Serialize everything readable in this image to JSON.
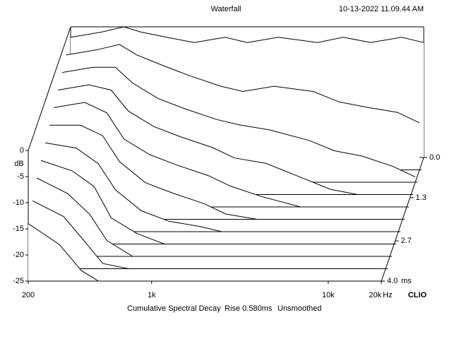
{
  "chart_data": {
    "type": "waterfall",
    "title": "Waterfall",
    "timestamp": "10-13-2022 11.09.44 AM",
    "caption": [
      "Cumulative Spectral Decay",
      "Rise 0.580ms",
      "Unsmoothed"
    ],
    "brand": "CLIO",
    "y_unit": "dB",
    "x_unit": "Hz",
    "z_unit": "ms",
    "log_x": true,
    "color": "#000000",
    "x": [
      200,
      300,
      400,
      500,
      700,
      1000,
      1500,
      2000,
      3000,
      5000,
      7000,
      10000,
      15000,
      20000
    ],
    "xlim": [
      200,
      20000
    ],
    "xticks": [
      200,
      {
        "value": 1000,
        "label": "1k"
      },
      {
        "value": 10000,
        "label": "10k"
      },
      {
        "value": 20000,
        "label": "20k"
      }
    ],
    "ylim": [
      -25,
      0
    ],
    "yticks": [
      0,
      -5,
      -10,
      -15,
      -20,
      -25
    ],
    "zlim": [
      0,
      4
    ],
    "zticks": [
      {
        "value": 0,
        "label": "0.0"
      },
      {
        "value": 1.3,
        "label": "1.3"
      },
      {
        "value": 2.7,
        "label": "2.7"
      },
      {
        "value": 4,
        "label": "4.0"
      }
    ],
    "slices": [
      {
        "time": 0,
        "values": [
          -2,
          -1,
          0,
          -1,
          -2,
          -3,
          -2,
          -3,
          -2,
          -3,
          -2,
          -3,
          -2,
          -3
        ]
      },
      {
        "time": 0.4,
        "values": [
          -3,
          -2,
          -1,
          -3,
          -5,
          -7,
          -9,
          -10,
          -9,
          -10,
          -12,
          -13,
          -14,
          -16
        ]
      },
      {
        "time": 0.8,
        "values": [
          -4,
          -3,
          -3,
          -6,
          -9,
          -11,
          -13,
          -14,
          -15,
          -17,
          -19,
          -20,
          -22,
          -24
        ]
      },
      {
        "time": 1.2,
        "values": [
          -5,
          -4,
          -5,
          -9,
          -12,
          -14,
          -16,
          -18,
          -19,
          -22,
          -24,
          -25,
          -25,
          -25
        ]
      },
      {
        "time": 1.6,
        "values": [
          -6,
          -5,
          -7,
          -12,
          -15,
          -17,
          -19,
          -21,
          -23,
          -25,
          -25,
          -25,
          -25,
          -25
        ]
      },
      {
        "time": 2,
        "values": [
          -7,
          -7,
          -9,
          -14,
          -18,
          -20,
          -22,
          -24,
          -25,
          -25,
          -25,
          -25,
          -25,
          -25
        ]
      },
      {
        "time": 2.4,
        "values": [
          -8,
          -9,
          -12,
          -17,
          -21,
          -23,
          -24,
          -25,
          -25,
          -25,
          -25,
          -25,
          -25,
          -25
        ]
      },
      {
        "time": 2.8,
        "values": [
          -9,
          -11,
          -14,
          -20,
          -23,
          -25,
          -25,
          -25,
          -25,
          -25,
          -25,
          -25,
          -25,
          -25
        ]
      },
      {
        "time": 3.2,
        "values": [
          -10,
          -13,
          -17,
          -22,
          -25,
          -25,
          -25,
          -25,
          -25,
          -25,
          -25,
          -25,
          -25,
          -25
        ]
      },
      {
        "time": 3.6,
        "values": [
          -12,
          -15,
          -20,
          -24,
          -25,
          -25,
          -25,
          -25,
          -25,
          -25,
          -25,
          -25,
          -25,
          -25
        ]
      },
      {
        "time": 4,
        "values": [
          -14,
          -18,
          -23,
          -25,
          -25,
          -25,
          -25,
          -25,
          -25,
          -25,
          -25,
          -25,
          -25,
          -25
        ]
      }
    ]
  }
}
